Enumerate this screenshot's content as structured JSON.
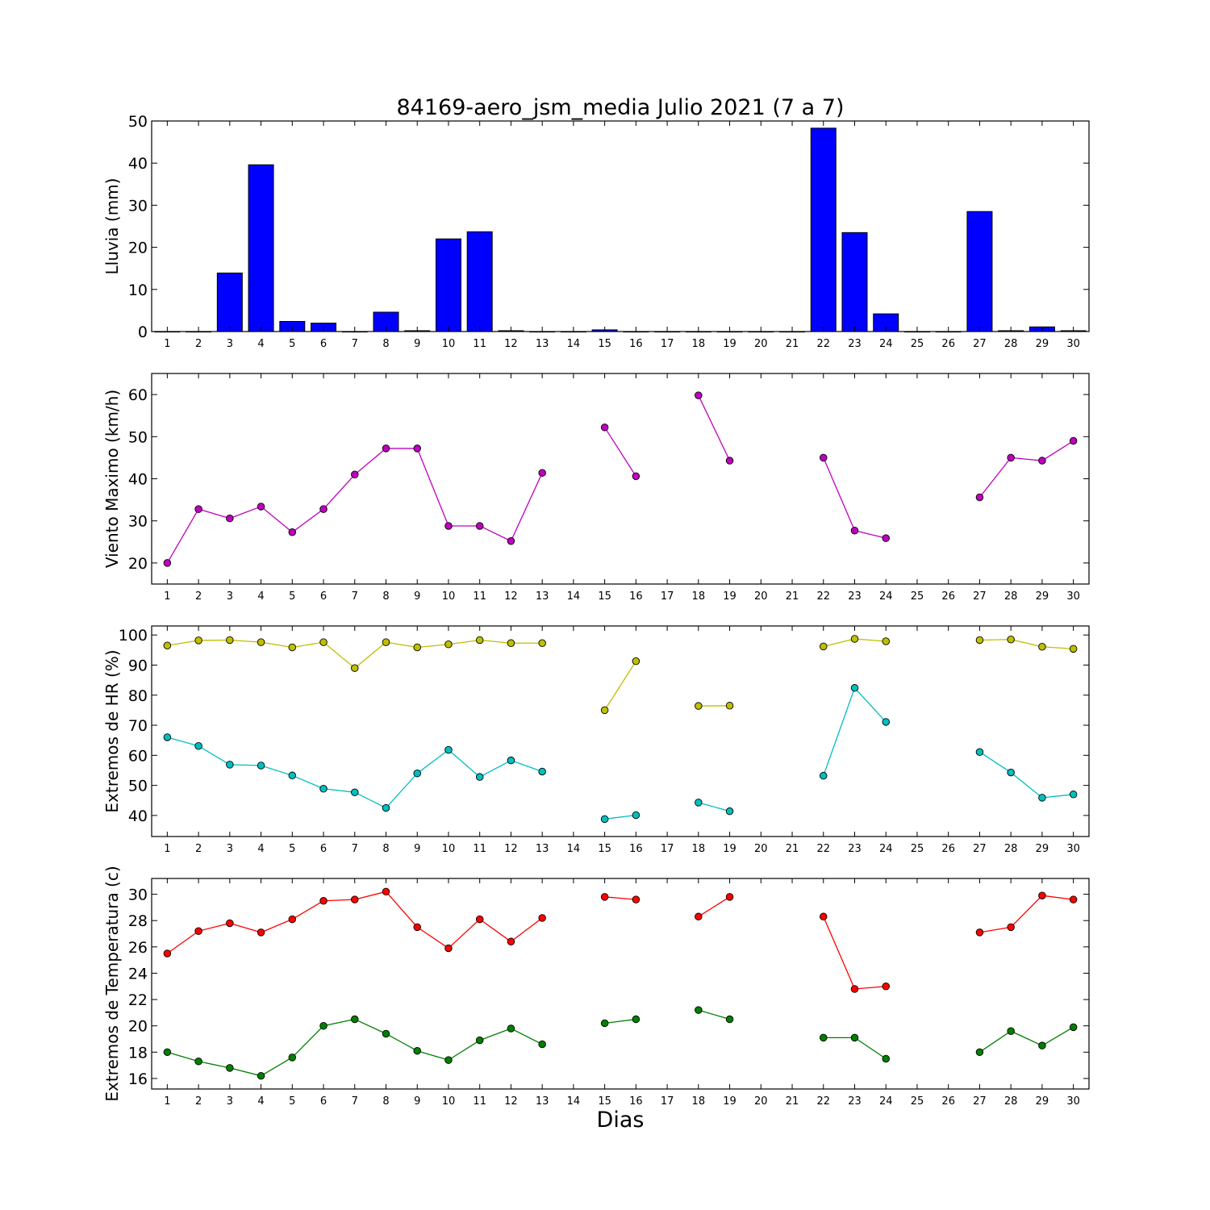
{
  "title": "84169-aero_jsm_media Julio 2021  (7 a 7)",
  "xlabel": "Dias",
  "chart_data": [
    {
      "type": "bar",
      "ylabel": "Lluvia (mm)",
      "ylim": [
        0,
        50
      ],
      "yticks": [
        0,
        10,
        20,
        30,
        40,
        50
      ],
      "x": [
        1,
        2,
        3,
        4,
        5,
        6,
        7,
        8,
        9,
        10,
        11,
        12,
        13,
        14,
        15,
        16,
        17,
        18,
        19,
        20,
        21,
        22,
        23,
        24,
        25,
        26,
        27,
        28,
        29,
        30
      ],
      "values": [
        0,
        0,
        13.9,
        39.6,
        2.4,
        2.0,
        0,
        4.6,
        0.2,
        22.0,
        23.7,
        0.2,
        0,
        0,
        0.4,
        0,
        0,
        0,
        0,
        0,
        0,
        48.3,
        23.5,
        4.2,
        0,
        0,
        28.5,
        0.2,
        1.1,
        0.2
      ],
      "color": "#0000ff"
    },
    {
      "type": "line",
      "ylabel": "Viento Maximo (km/h)",
      "ylim": [
        15,
        65
      ],
      "yticks": [
        20,
        30,
        40,
        50,
        60
      ],
      "x": [
        1,
        2,
        3,
        4,
        5,
        6,
        7,
        8,
        9,
        10,
        11,
        12,
        13,
        14,
        15,
        16,
        17,
        18,
        19,
        20,
        21,
        22,
        23,
        24,
        25,
        26,
        27,
        28,
        29,
        30
      ],
      "series": [
        {
          "color": "#bf00bf",
          "values": [
            20.0,
            32.8,
            30.6,
            33.4,
            27.3,
            32.8,
            41.0,
            47.2,
            47.2,
            28.8,
            28.8,
            25.2,
            41.4,
            null,
            52.2,
            40.6,
            null,
            59.8,
            44.3,
            null,
            null,
            45.0,
            27.7,
            25.9,
            null,
            null,
            35.6,
            45.0,
            44.3,
            49.0
          ]
        }
      ]
    },
    {
      "type": "line",
      "ylabel": "Extremos de HR (%)",
      "ylim": [
        33,
        103
      ],
      "yticks": [
        40,
        50,
        60,
        70,
        80,
        90,
        100
      ],
      "x": [
        1,
        2,
        3,
        4,
        5,
        6,
        7,
        8,
        9,
        10,
        11,
        12,
        13,
        14,
        15,
        16,
        17,
        18,
        19,
        20,
        21,
        22,
        23,
        24,
        25,
        26,
        27,
        28,
        29,
        30
      ],
      "series": [
        {
          "color": "#bfbf00",
          "values": [
            96.5,
            98.2,
            98.3,
            97.6,
            95.9,
            97.6,
            89.0,
            97.6,
            95.9,
            96.9,
            98.3,
            97.3,
            97.3,
            null,
            75.0,
            91.3,
            null,
            76.4,
            76.5,
            null,
            null,
            96.2,
            98.7,
            97.9,
            null,
            null,
            98.3,
            98.5,
            96.1,
            95.4
          ]
        },
        {
          "color": "#00bfbf",
          "values": [
            66.0,
            63.1,
            56.9,
            56.6,
            53.3,
            48.9,
            47.7,
            42.5,
            54.0,
            61.8,
            52.8,
            58.3,
            54.6,
            null,
            38.8,
            40.1,
            null,
            44.3,
            41.4,
            null,
            null,
            53.2,
            82.4,
            71.1,
            null,
            null,
            61.1,
            54.3,
            45.9,
            47.0
          ]
        }
      ]
    },
    {
      "type": "line",
      "ylabel": "Extremos de Temperatura (c)",
      "ylim": [
        15.2,
        31.2
      ],
      "yticks": [
        16,
        18,
        20,
        22,
        24,
        26,
        28,
        30
      ],
      "x": [
        1,
        2,
        3,
        4,
        5,
        6,
        7,
        8,
        9,
        10,
        11,
        12,
        13,
        14,
        15,
        16,
        17,
        18,
        19,
        20,
        21,
        22,
        23,
        24,
        25,
        26,
        27,
        28,
        29,
        30
      ],
      "series": [
        {
          "color": "#ff0000",
          "values": [
            25.5,
            27.2,
            27.8,
            27.1,
            28.1,
            29.5,
            29.6,
            30.2,
            27.5,
            25.9,
            28.1,
            26.4,
            28.2,
            null,
            29.8,
            29.6,
            null,
            28.3,
            29.8,
            null,
            null,
            28.3,
            22.8,
            23.0,
            null,
            null,
            27.1,
            27.5,
            29.9,
            29.6
          ]
        },
        {
          "color": "#008000",
          "values": [
            18.0,
            17.3,
            16.8,
            16.2,
            17.6,
            20.0,
            20.5,
            19.4,
            18.1,
            17.4,
            18.9,
            19.8,
            18.6,
            null,
            20.2,
            20.5,
            null,
            21.2,
            20.5,
            null,
            null,
            19.1,
            19.1,
            17.5,
            null,
            null,
            18.0,
            19.6,
            18.5,
            19.9
          ]
        }
      ]
    }
  ]
}
